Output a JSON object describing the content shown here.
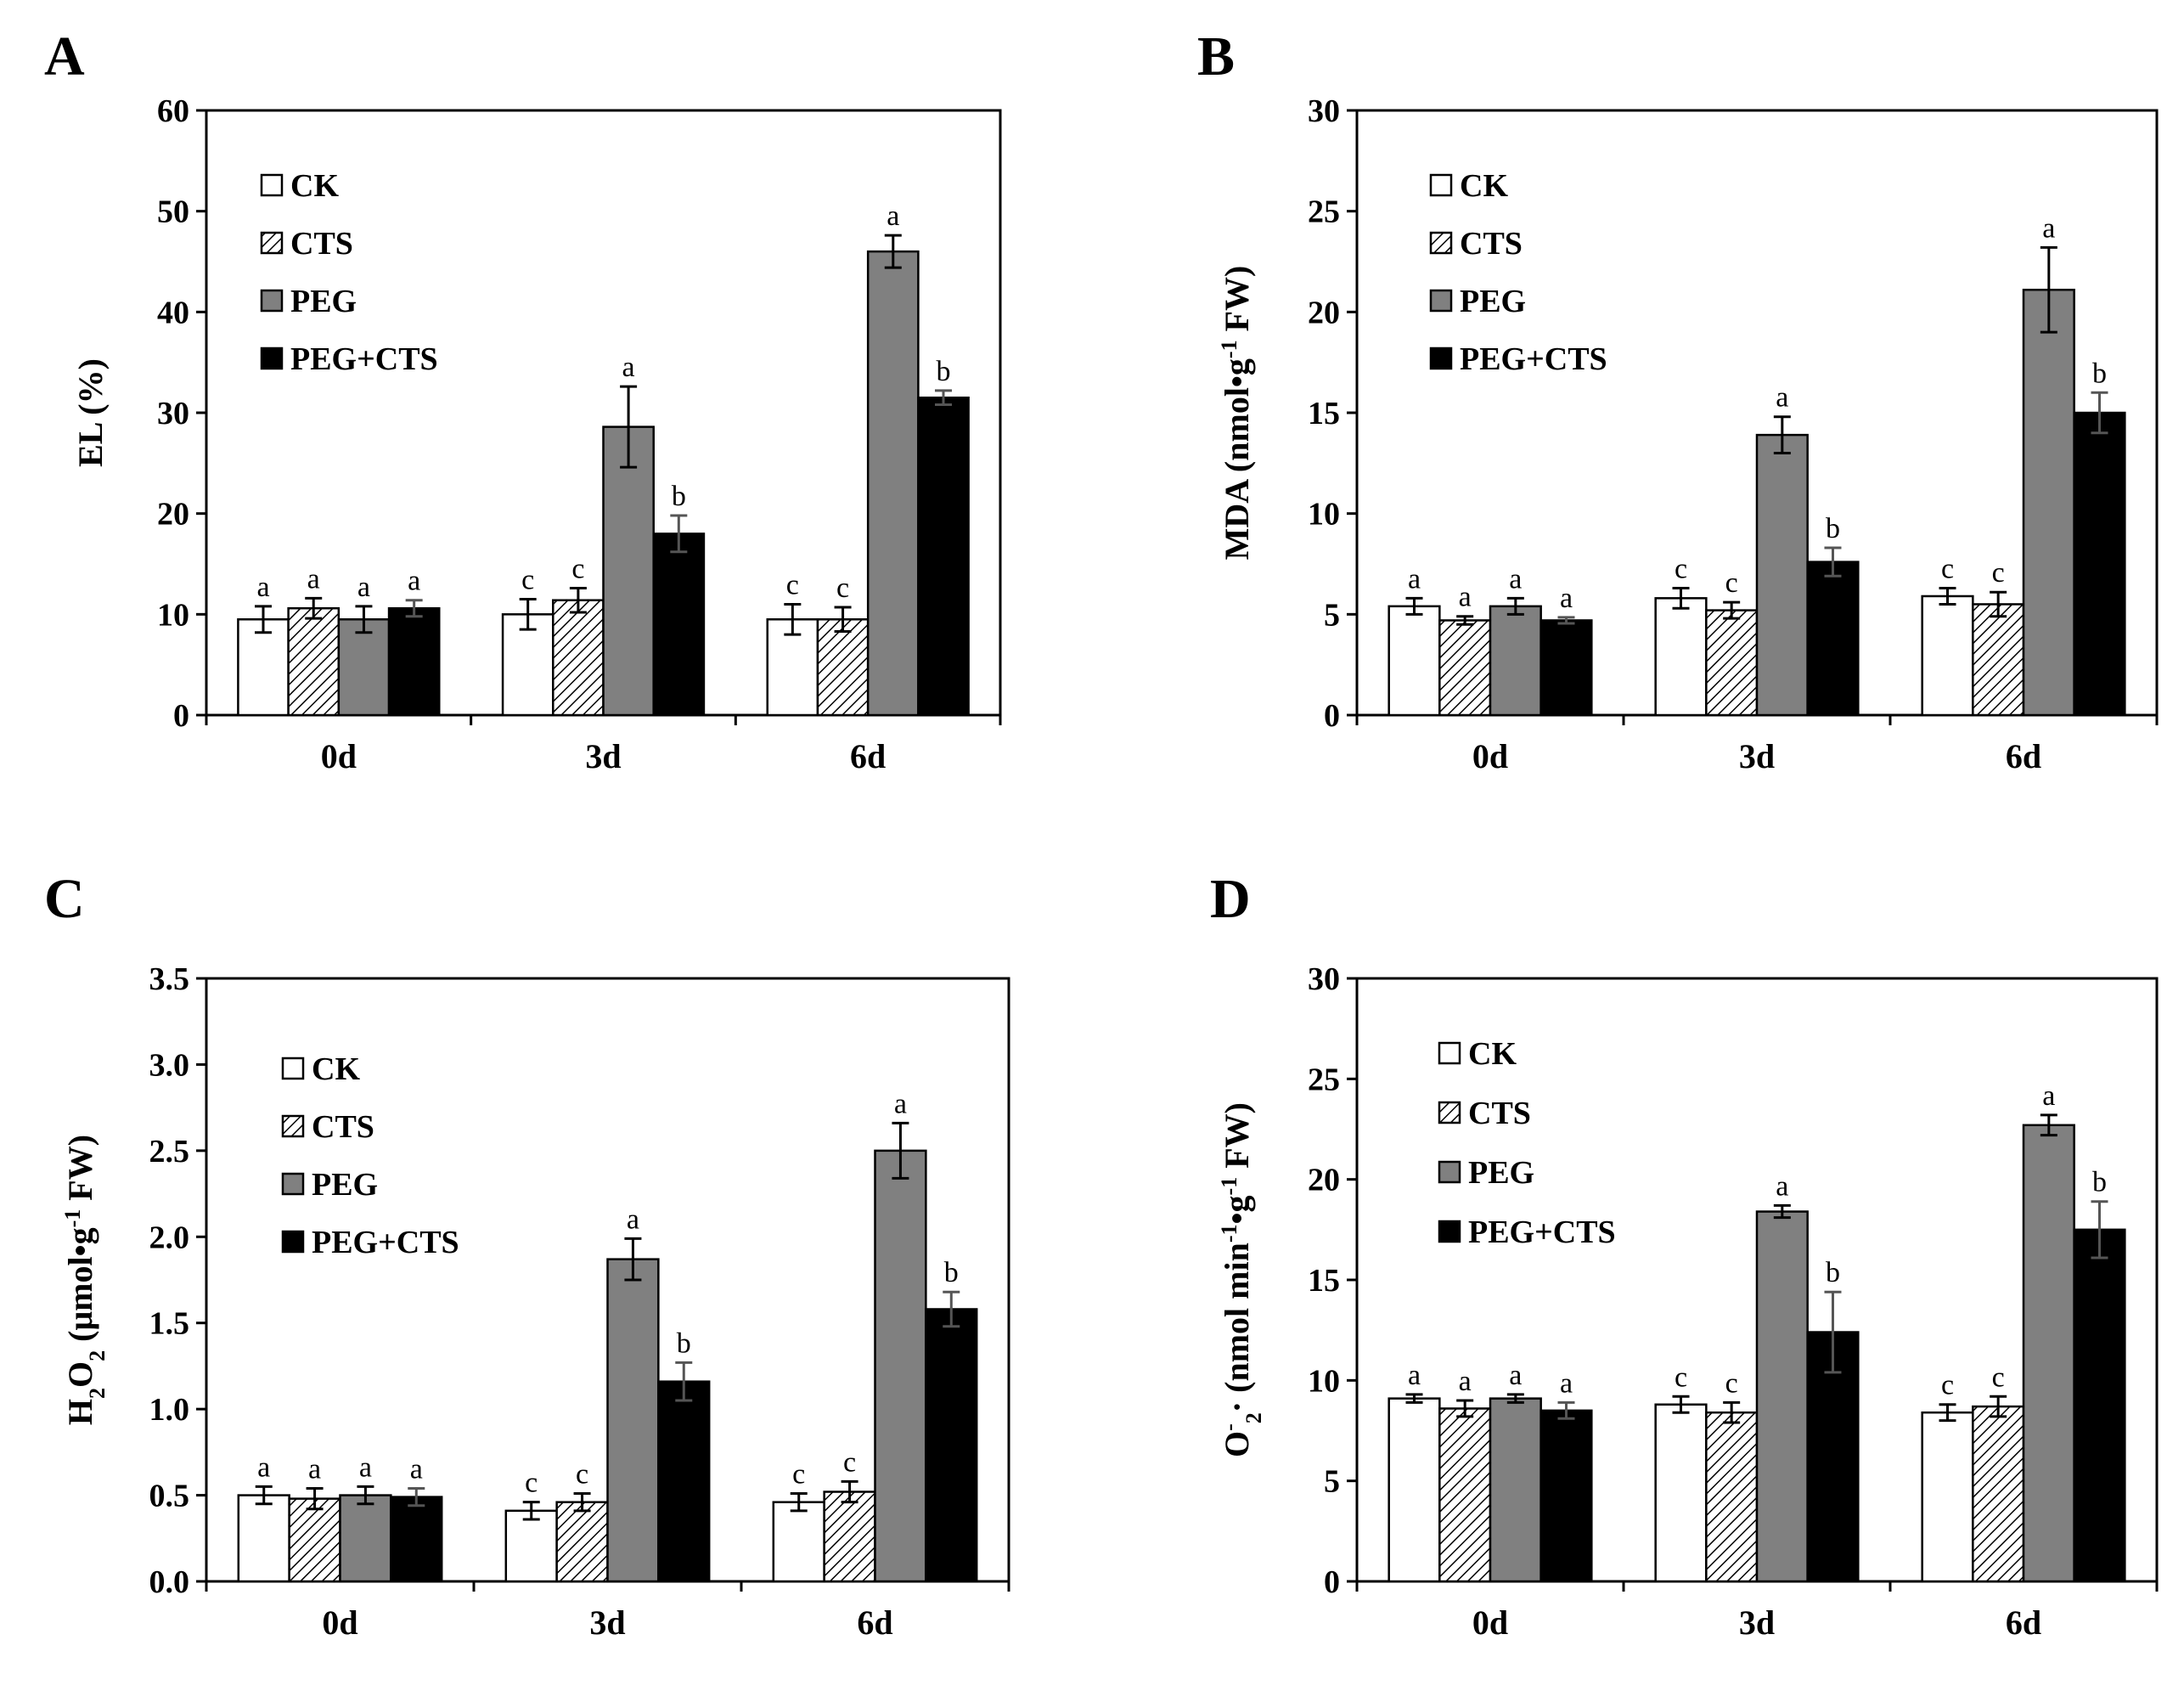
{
  "figure": {
    "colors": {
      "CK": "#ffffff",
      "CTS": "hatch",
      "PEG": "#808080",
      "PEG+CTS": "#000000"
    }
  },
  "chart_data": [
    {
      "panel": "A",
      "type": "bar",
      "title": "",
      "xlabel": "",
      "ylabel": "EL (%)",
      "ylabel_parts": [
        {
          "t": "EL (%)",
          "s": ""
        }
      ],
      "ylim": [
        0,
        60
      ],
      "yticks": [
        0,
        10,
        20,
        30,
        40,
        50,
        60
      ],
      "ytick_labels": [
        "0",
        "10",
        "20",
        "30",
        "40",
        "50",
        "60"
      ],
      "categories": [
        "0d",
        "3d",
        "6d"
      ],
      "legend": [
        "CK",
        "CTS",
        "PEG",
        "PEG+CTS"
      ],
      "series": [
        {
          "name": "CK",
          "values": [
            9.5,
            10.0,
            9.5
          ],
          "errors": [
            1.3,
            1.5,
            1.5
          ],
          "letters": [
            "a",
            "c",
            "c"
          ]
        },
        {
          "name": "CTS",
          "values": [
            10.6,
            11.4,
            9.5
          ],
          "errors": [
            1.0,
            1.2,
            1.2
          ],
          "letters": [
            "a",
            "c",
            "c"
          ]
        },
        {
          "name": "PEG",
          "values": [
            9.5,
            28.6,
            46.0
          ],
          "errors": [
            1.3,
            4.0,
            1.6
          ],
          "letters": [
            "a",
            "a",
            "a"
          ]
        },
        {
          "name": "PEG+CTS",
          "values": [
            10.6,
            18.0,
            31.5
          ],
          "errors": [
            0.8,
            1.8,
            0.7
          ],
          "letters": [
            "a",
            "b",
            "b"
          ]
        }
      ]
    },
    {
      "panel": "B",
      "type": "bar",
      "title": "",
      "xlabel": "",
      "ylabel": "MDA (nmol•g-1 FW)",
      "ylabel_parts": [
        {
          "t": "MDA (nmol•g",
          "s": ""
        },
        {
          "t": "-1",
          "s": "sup"
        },
        {
          "t": " FW)",
          "s": ""
        }
      ],
      "ylim": [
        0,
        30
      ],
      "yticks": [
        0,
        5,
        10,
        15,
        20,
        25,
        30
      ],
      "ytick_labels": [
        "0",
        "5",
        "10",
        "15",
        "20",
        "25",
        "30"
      ],
      "categories": [
        "0d",
        "3d",
        "6d"
      ],
      "legend": [
        "CK",
        "CTS",
        "PEG",
        "PEG+CTS"
      ],
      "series": [
        {
          "name": "CK",
          "values": [
            5.4,
            5.8,
            5.9
          ],
          "errors": [
            0.4,
            0.5,
            0.4
          ],
          "letters": [
            "a",
            "c",
            "c"
          ]
        },
        {
          "name": "CTS",
          "values": [
            4.7,
            5.2,
            5.5
          ],
          "errors": [
            0.2,
            0.4,
            0.6
          ],
          "letters": [
            "a",
            "c",
            "c"
          ]
        },
        {
          "name": "PEG",
          "values": [
            5.4,
            13.9,
            21.1
          ],
          "errors": [
            0.4,
            0.9,
            2.1
          ],
          "letters": [
            "a",
            "a",
            "a"
          ]
        },
        {
          "name": "PEG+CTS",
          "values": [
            4.7,
            7.6,
            15.0
          ],
          "errors": [
            0.15,
            0.7,
            1.0
          ],
          "letters": [
            "a",
            "b",
            "b"
          ]
        }
      ]
    },
    {
      "panel": "C",
      "type": "bar",
      "title": "",
      "xlabel": "",
      "ylabel": "H2O2 (μmol•g-1 FW)",
      "ylabel_parts": [
        {
          "t": "H",
          "s": ""
        },
        {
          "t": "2",
          "s": "sub"
        },
        {
          "t": "O",
          "s": ""
        },
        {
          "t": "2",
          "s": "sub"
        },
        {
          "t": " (μmol•g",
          "s": ""
        },
        {
          "t": "-1",
          "s": "sup"
        },
        {
          "t": " FW)",
          "s": ""
        }
      ],
      "ylim": [
        0,
        3.5
      ],
      "yticks": [
        0,
        0.5,
        1.0,
        1.5,
        2.0,
        2.5,
        3.0,
        3.5
      ],
      "ytick_labels": [
        "0.0",
        "0.5",
        "1.0",
        "1.5",
        "2.0",
        "2.5",
        "3.0",
        "3.5"
      ],
      "categories": [
        "0d",
        "3d",
        "6d"
      ],
      "legend": [
        "CK",
        "CTS",
        "PEG",
        "PEG+CTS"
      ],
      "series": [
        {
          "name": "CK",
          "values": [
            0.5,
            0.41,
            0.46
          ],
          "errors": [
            0.05,
            0.05,
            0.05
          ],
          "letters": [
            "a",
            "c",
            "c"
          ]
        },
        {
          "name": "CTS",
          "values": [
            0.48,
            0.46,
            0.52
          ],
          "errors": [
            0.06,
            0.05,
            0.06
          ],
          "letters": [
            "a",
            "c",
            "c"
          ]
        },
        {
          "name": "PEG",
          "values": [
            0.5,
            1.87,
            2.5
          ],
          "errors": [
            0.05,
            0.12,
            0.16
          ],
          "letters": [
            "a",
            "a",
            "a"
          ]
        },
        {
          "name": "PEG+CTS",
          "values": [
            0.49,
            1.16,
            1.58
          ],
          "errors": [
            0.05,
            0.11,
            0.1
          ],
          "letters": [
            "a",
            "b",
            "b"
          ]
        }
      ]
    },
    {
      "panel": "D",
      "type": "bar",
      "title": "",
      "xlabel": "",
      "ylabel": "O-2· (nmol min-1•g-1 FW)",
      "ylabel_parts": [
        {
          "t": "O",
          "s": ""
        },
        {
          "t": "-",
          "s": "sup"
        },
        {
          "t": "2",
          "s": "sub"
        },
        {
          "t": "· (nmol min",
          "s": ""
        },
        {
          "t": "-1",
          "s": "sup"
        },
        {
          "t": "•g",
          "s": ""
        },
        {
          "t": "-1",
          "s": "sup"
        },
        {
          "t": " FW)",
          "s": ""
        }
      ],
      "ylim": [
        0,
        30
      ],
      "yticks": [
        0,
        5,
        10,
        15,
        20,
        25,
        30
      ],
      "ytick_labels": [
        "0",
        "5",
        "10",
        "15",
        "20",
        "25",
        "30"
      ],
      "categories": [
        "0d",
        "3d",
        "6d"
      ],
      "legend": [
        "CK",
        "CTS",
        "PEG",
        "PEG+CTS"
      ],
      "series": [
        {
          "name": "CK",
          "values": [
            9.1,
            8.8,
            8.4
          ],
          "errors": [
            0.2,
            0.4,
            0.4
          ],
          "letters": [
            "a",
            "c",
            "c"
          ]
        },
        {
          "name": "CTS",
          "values": [
            8.6,
            8.4,
            8.7
          ],
          "errors": [
            0.4,
            0.5,
            0.5
          ],
          "letters": [
            "a",
            "c",
            "c"
          ]
        },
        {
          "name": "PEG",
          "values": [
            9.1,
            18.4,
            22.7
          ],
          "errors": [
            0.2,
            0.3,
            0.5
          ],
          "letters": [
            "a",
            "a",
            "a"
          ]
        },
        {
          "name": "PEG+CTS",
          "values": [
            8.5,
            12.4,
            17.5
          ],
          "errors": [
            0.4,
            2.0,
            1.4
          ],
          "letters": [
            "a",
            "b",
            "b"
          ]
        }
      ]
    }
  ]
}
